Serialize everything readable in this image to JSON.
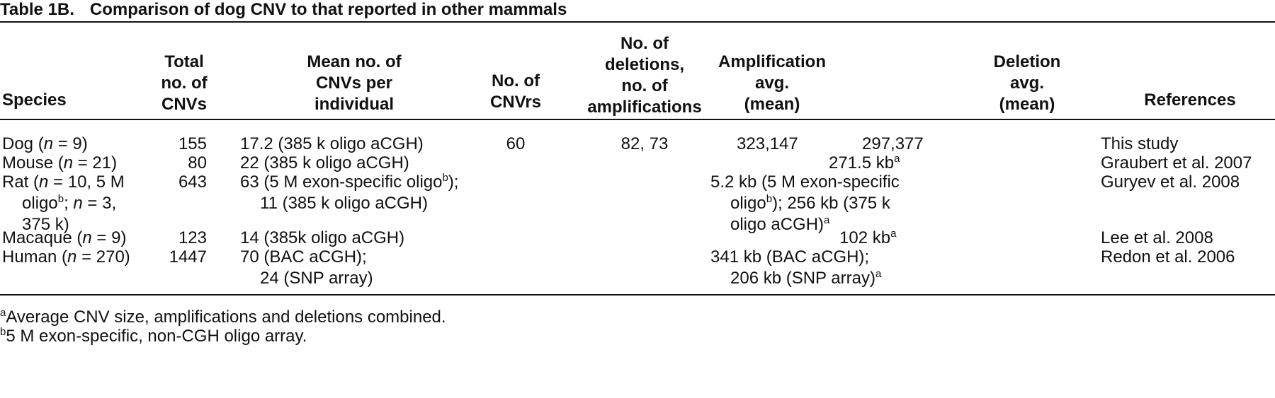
{
  "table": {
    "label": "Table 1B.",
    "title": "Comparison of dog CNV to that reported in other mammals",
    "columns": {
      "species": [
        "Species"
      ],
      "total": [
        "Total",
        "no. of",
        "CNVs"
      ],
      "mean": [
        "Mean no. of",
        "CNVs per",
        "individual"
      ],
      "cnvrs": [
        "No. of",
        "CNVrs"
      ],
      "deletions": [
        "No. of",
        "deletions,",
        "no. of",
        "amplifications"
      ],
      "amplification": [
        "Amplification",
        "avg.",
        "(mean)"
      ],
      "deletion": [
        "Deletion",
        "avg.",
        "(mean)"
      ],
      "references": [
        "References"
      ]
    },
    "rows": [
      {
        "species_name": "Dog",
        "species_open": "(",
        "species_n": "n",
        "species_eq": " = 9)",
        "total": "155",
        "mean": "17.2 (385 k oligo aCGH)",
        "cnvrs": "60",
        "dels": "82, 73",
        "amp": "323,147",
        "del": "297,377",
        "ref": "This study"
      },
      {
        "species_name": "Mouse",
        "species_open": "(",
        "species_n": "n",
        "species_eq": " = 21)",
        "total": "80",
        "mean": "22 (385 k oligo aCGH)",
        "combined": "271.5 kb",
        "combined_sup": "a",
        "ref": "Graubert et al. 2007"
      },
      {
        "species_l1a": "Rat (",
        "species_l1n": "n",
        "species_l1b": " = 10, 5 M",
        "species_l2a": "oligo",
        "species_l2sup": "b",
        "species_l2b": "; ",
        "species_l2n": "n",
        "species_l2c": " = 3,",
        "species_l3": "375 k)",
        "total": "643",
        "mean_l1": "63 (5 M exon-specific oligo",
        "mean_l1sup": "b",
        "mean_l1end": ");",
        "mean_l2": "11 (385 k oligo aCGH)",
        "comb_l1": "5.2 kb (5 M exon-specific",
        "comb_l2a": "oligo",
        "comb_l2sup": "b",
        "comb_l2b": "); 256 kb (375 k",
        "comb_l3": "oligo aCGH)",
        "comb_l3sup": "a",
        "ref": "Guryev et al. 2008"
      },
      {
        "species_name": "Macaque",
        "species_open": "(",
        "species_n": "n",
        "species_eq": " = 9)",
        "total": "123",
        "mean": "14 (385k oligo aCGH)",
        "combined": "102 kb",
        "combined_sup": "a",
        "ref": "Lee et al. 2008"
      },
      {
        "species_name": "Human",
        "species_open": "(",
        "species_n": "n",
        "species_eq": " = 270)",
        "total": "1447",
        "mean_l1": "70 (BAC aCGH);",
        "mean_l2": "24 (SNP array)",
        "comb_l1": "341 kb (BAC aCGH);",
        "comb_l2": "206 kb (SNP array)",
        "comb_l2sup": "a",
        "ref": "Redon et al. 2006"
      }
    ],
    "footnotes": [
      {
        "mark": "a",
        "text": "Average CNV size, amplifications and deletions combined."
      },
      {
        "mark": "b",
        "text": "5 M exon-specific, non-CGH oligo array."
      }
    ]
  }
}
